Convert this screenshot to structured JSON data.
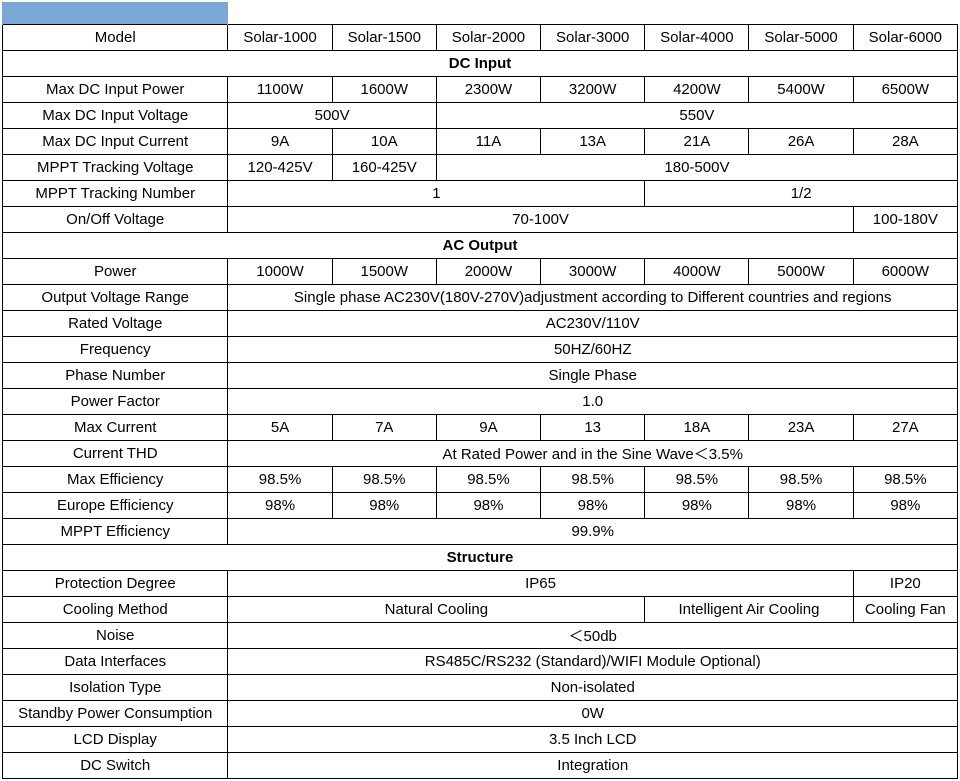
{
  "header": {
    "model": "Model",
    "cols": [
      "Solar-1000",
      "Solar-1500",
      "Solar-2000",
      "Solar-3000",
      "Solar-4000",
      "Solar-5000",
      "Solar-6000"
    ]
  },
  "sections": {
    "dc": "DC Input",
    "ac": "AC Output",
    "st": "Structure"
  },
  "rows": {
    "maxDcPower": {
      "label": "Max DC Input Power",
      "v": [
        "1100W",
        "1600W",
        "2300W",
        "3200W",
        "4200W",
        "5400W",
        "6500W"
      ]
    },
    "maxDcVoltage": {
      "label": "Max DC Input Voltage",
      "v1": "500V",
      "v2": "550V"
    },
    "maxDcCurrent": {
      "label": "Max DC Input Current",
      "v": [
        "9A",
        "10A",
        "11A",
        "13A",
        "21A",
        "26A",
        "28A"
      ]
    },
    "mpptVolt": {
      "label": "MPPT Tracking Voltage",
      "v1": "120-425V",
      "v2": "160-425V",
      "v3": "180-500V"
    },
    "mpptNum": {
      "label": "MPPT Tracking Number",
      "v1": "1",
      "v2": "1/2"
    },
    "onOff": {
      "label": "On/Off Voltage",
      "v1": "70-100V",
      "v2": "100-180V"
    },
    "power": {
      "label": "Power",
      "v": [
        "1000W",
        "1500W",
        "2000W",
        "3000W",
        "4000W",
        "5000W",
        "6000W"
      ]
    },
    "outVoltRange": {
      "label": "Output Voltage Range",
      "v": "Single phase AC230V(180V-270V)adjustment according to Different countries and regions"
    },
    "ratedV": {
      "label": "Rated Voltage",
      "v": "AC230V/110V"
    },
    "freq": {
      "label": "Frequency",
      "v": "50HZ/60HZ"
    },
    "phase": {
      "label": "Phase Number",
      "v": "Single Phase"
    },
    "pf": {
      "label": "Power Factor",
      "v": "1.0"
    },
    "maxCur": {
      "label": "Max Current",
      "v": [
        "5A",
        "7A",
        "9A",
        "13",
        "18A",
        "23A",
        "27A"
      ]
    },
    "thd": {
      "label": "Current THD",
      "v": "At Rated Power and in the Sine Wave＜3.5%"
    },
    "maxEff": {
      "label": "Max Efficiency",
      "v": [
        "98.5%",
        "98.5%",
        "98.5%",
        "98.5%",
        "98.5%",
        "98.5%",
        "98.5%"
      ]
    },
    "euEff": {
      "label": "Europe Efficiency",
      "v": [
        "98%",
        "98%",
        "98%",
        "98%",
        "98%",
        "98%",
        "98%"
      ]
    },
    "mpptEff": {
      "label": "MPPT Efficiency",
      "v": "99.9%"
    },
    "prot": {
      "label": "Protection Degree",
      "v1": "IP65",
      "v2": "IP20"
    },
    "cool": {
      "label": "Cooling Method",
      "v1": "Natural Cooling",
      "v2": "Intelligent Air Cooling",
      "v3": "Cooling Fan"
    },
    "noise": {
      "label": "Noise",
      "v": "＜50db"
    },
    "dataIf": {
      "label": "Data Interfaces",
      "v": "RS485C/RS232 (Standard)/WIFI Module Optional)"
    },
    "iso": {
      "label": "Isolation Type",
      "v": "Non-isolated"
    },
    "standby": {
      "label": "Standby Power Consumption",
      "v": "0W"
    },
    "lcd": {
      "label": "LCD Display",
      "v": "3.5 Inch LCD"
    },
    "dcsw": {
      "label": "DC Switch",
      "v": "Integration"
    }
  },
  "style": {
    "accent_color": "#7ba7d6",
    "border_color": "#000000",
    "bg_color": "#ffffff",
    "font_size": 15,
    "label_col_width": 225,
    "data_col_width": 104
  }
}
